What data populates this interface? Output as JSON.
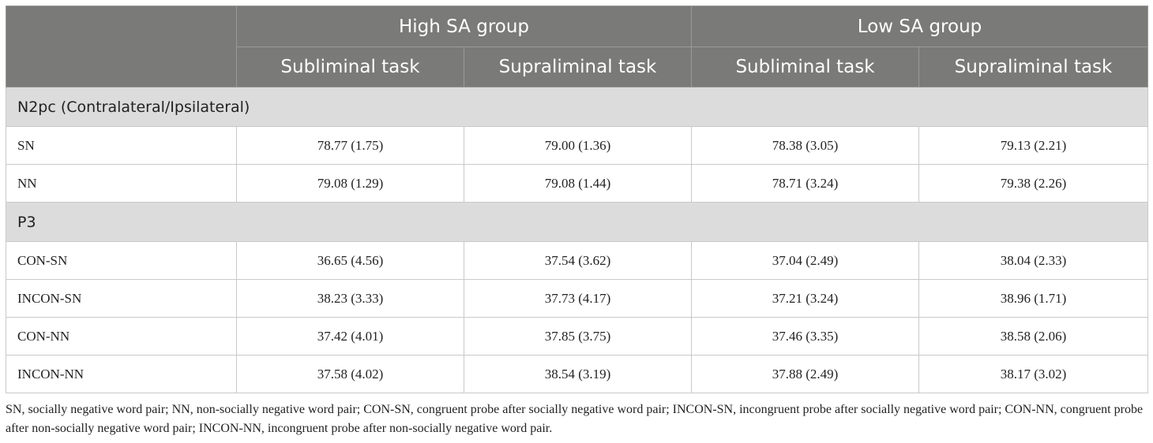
{
  "header": {
    "groups": [
      "High SA group",
      "Low SA group"
    ],
    "tasks": [
      "Subliminal task",
      "Supraliminal task",
      "Subliminal task",
      "Supraliminal task"
    ]
  },
  "sections": [
    {
      "title": "N2pc (Contralateral/Ipsilateral)",
      "rows": [
        {
          "label": "SN",
          "values": [
            "78.77 (1.75)",
            "79.00 (1.36)",
            "78.38 (3.05)",
            "79.13 (2.21)"
          ]
        },
        {
          "label": "NN",
          "values": [
            "79.08 (1.29)",
            "79.08 (1.44)",
            "78.71 (3.24)",
            "79.38 (2.26)"
          ]
        }
      ]
    },
    {
      "title": "P3",
      "rows": [
        {
          "label": "CON-SN",
          "values": [
            "36.65 (4.56)",
            "37.54 (3.62)",
            "37.04 (2.49)",
            "38.04 (2.33)"
          ]
        },
        {
          "label": "INCON-SN",
          "values": [
            "38.23 (3.33)",
            "37.73 (4.17)",
            "37.21 (3.24)",
            "38.96 (1.71)"
          ]
        },
        {
          "label": "CON-NN",
          "values": [
            "37.42 (4.01)",
            "37.85 (3.75)",
            "37.46 (3.35)",
            "38.58 (2.06)"
          ]
        },
        {
          "label": "INCON-NN",
          "values": [
            "37.58 (4.02)",
            "38.54 (3.19)",
            "37.88 (2.49)",
            "38.17 (3.02)"
          ]
        }
      ]
    }
  ],
  "footnote": "SN, socially negative word pair; NN, non-socially negative word pair; CON-SN, congruent probe after socially negative word pair; INCON-SN, incongruent probe after socially negative word pair; CON-NN, congruent probe after non-socially negative word pair; INCON-NN, incongruent probe after non-socially negative word pair."
}
